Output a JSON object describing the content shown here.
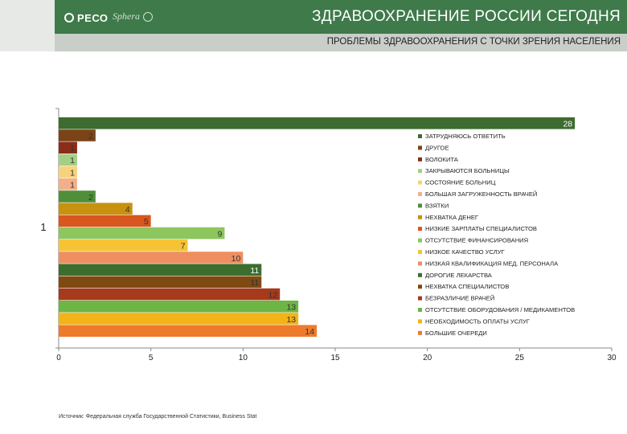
{
  "header": {
    "title": "ЗДРАВООХРАНЕНИЕ РОССИИ СЕГОДНЯ",
    "subtitle": "ПРОБЛЕМЫ ЗДРАВООХРАНЕНИЯ С ТОЧКИ ЗРЕНИЯ НАСЕЛЕНИЯ",
    "logo_primary": "РЕСО",
    "logo_secondary": "Sphera"
  },
  "source_note": "Источник: Федеральная служба Государственной Статистики, Business Stat",
  "chart_data": {
    "type": "bar",
    "orientation": "horizontal",
    "category_label": "1",
    "xlim": [
      0,
      30
    ],
    "x_ticks": [
      0,
      5,
      10,
      15,
      20,
      25,
      30
    ],
    "grid": false,
    "legend_position": "right",
    "series": [
      {
        "name": "ЗАТРУДНЯЮСЬ ОТВЕТИТЬ",
        "value": 28,
        "color": "#3e6b2f"
      },
      {
        "name": "ДРУГОЕ",
        "value": 2,
        "color": "#7a4418"
      },
      {
        "name": "ВОЛОКИТА",
        "value": 1,
        "color": "#8a2d1a"
      },
      {
        "name": "ЗАКРЫВАЮТСЯ БОЛЬНИЦЫ",
        "value": 1,
        "color": "#a6cf86"
      },
      {
        "name": "СОСТОЯНИЕ БОЛЬНИЦ",
        "value": 1,
        "color": "#f8d27a"
      },
      {
        "name": "БОЛЬШАЯ ЗАГРУЖЕННОСТЬ ВРАЧЕЙ",
        "value": 1,
        "color": "#f2b08a"
      },
      {
        "name": "ВЗЯТКИ",
        "value": 2,
        "color": "#4f8f3a"
      },
      {
        "name": "НЕХВАТКА ДЕНЕГ",
        "value": 4,
        "color": "#c8920f"
      },
      {
        "name": "НИЗКИЕ ЗАРПЛАТЫ СПЕЦИАЛИСТОВ",
        "value": 5,
        "color": "#d9561f"
      },
      {
        "name": "ОТСУТСТВИЕ ФИНАНСИРОВАНИЯ",
        "value": 9,
        "color": "#8cc65c"
      },
      {
        "name": "НИЗКОЕ КАЧЕСТВО УСЛУГ",
        "value": 7,
        "color": "#f6c336"
      },
      {
        "name": "НИЗКАЯ КВАЛИФИКАЦИЯ МЕД. ПЕРСОНАЛА",
        "value": 10,
        "color": "#ee8f62"
      },
      {
        "name": "ДОРОГИЕ ЛЕКАРСТВА",
        "value": 11,
        "color": "#3c6e2e"
      },
      {
        "name": "НЕХВАТКА СПЕЦИАЛИСТОВ",
        "value": 11,
        "color": "#7f4a12"
      },
      {
        "name": "БЕЗРАЗЛИЧИЕ ВРАЧЕЙ",
        "value": 12,
        "color": "#a63a1b"
      },
      {
        "name": "ОТСУТСТВИЕ ОБОРУДОВАНИЯ / МЕДИКАМЕНТОВ",
        "value": 13,
        "color": "#6db545"
      },
      {
        "name": "НЕОБХОДИМОСТЬ ОПЛАТЫ УСЛУГ",
        "value": 13,
        "color": "#f2b418"
      },
      {
        "name": "БОЛЬШИЕ ОЧЕРЕДИ",
        "value": 14,
        "color": "#ee7a2c"
      }
    ]
  }
}
